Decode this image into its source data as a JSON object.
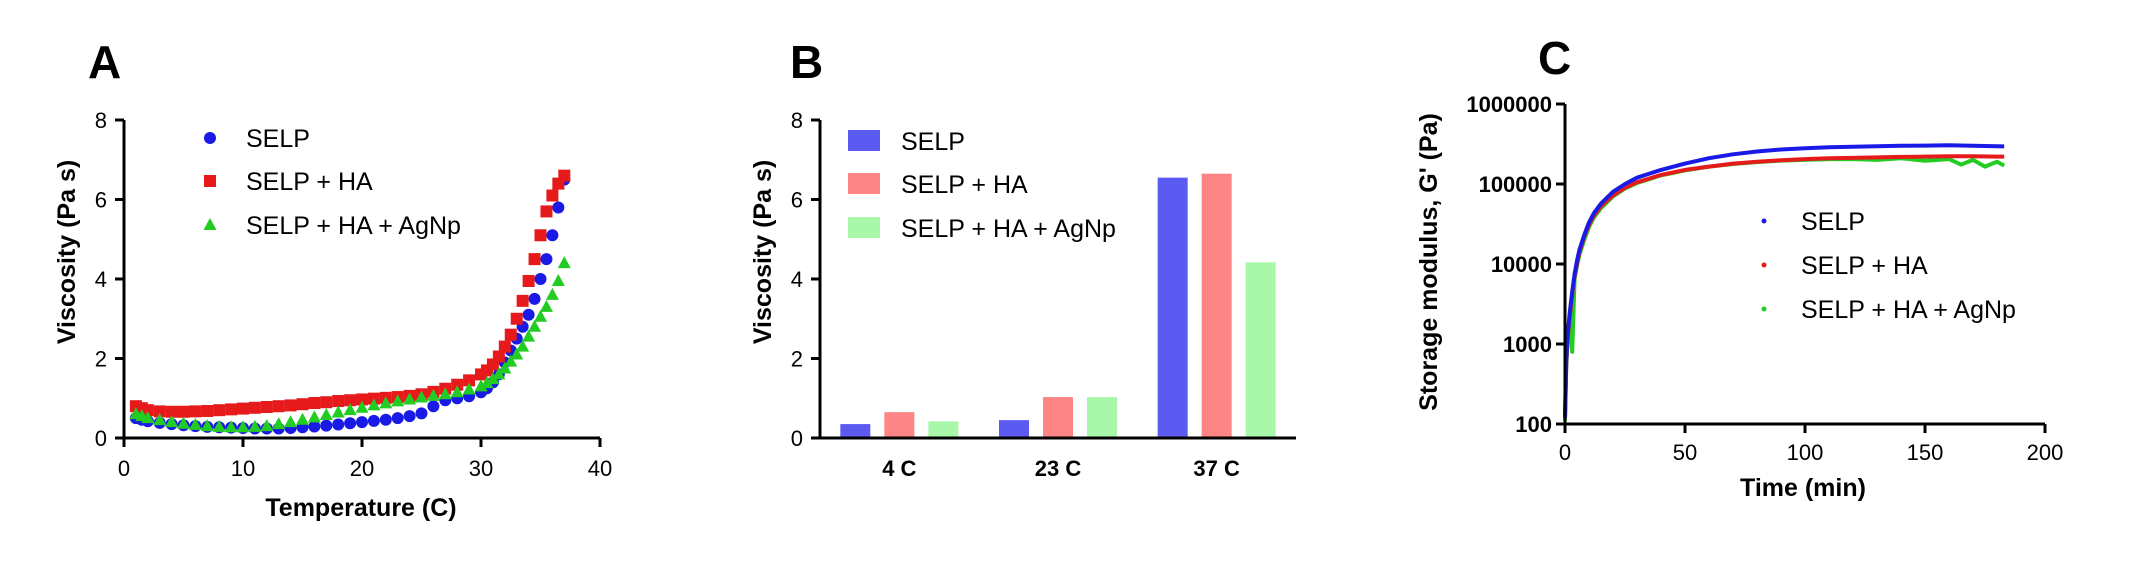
{
  "colors": {
    "selp": "#1a1ae6",
    "selp_ha": "#e61a1a",
    "selp_ha_agnp": "#22cc22",
    "bar_selp": "#5b5bf2",
    "bar_selp_ha": "#fd8585",
    "bar_selp_ha_agnp": "#a9f7a9"
  },
  "chart_data": [
    {
      "panel": "A",
      "type": "scatter",
      "xlabel": "Temperature (C)",
      "ylabel": "Viscosity (Pa s)",
      "xlim": [
        0,
        40
      ],
      "ylim": [
        0,
        8
      ],
      "xticks": [
        0,
        10,
        20,
        30,
        40
      ],
      "yticks": [
        0,
        2,
        4,
        6,
        8
      ],
      "legend": "top-left",
      "series": [
        {
          "name": "SELP",
          "marker": "circle",
          "x": [
            1,
            1.5,
            2,
            3,
            4,
            5,
            6,
            7,
            8,
            9,
            10,
            11,
            12,
            13,
            14,
            15,
            16,
            17,
            18,
            19,
            20,
            21,
            22,
            23,
            24,
            25,
            26,
            27,
            28,
            29,
            30,
            30.5,
            31,
            31.5,
            32,
            32.5,
            33,
            33.5,
            34,
            34.5,
            35,
            35.5,
            36,
            36.5,
            37
          ],
          "y": [
            0.5,
            0.46,
            0.42,
            0.38,
            0.35,
            0.32,
            0.3,
            0.28,
            0.27,
            0.26,
            0.25,
            0.24,
            0.24,
            0.24,
            0.25,
            0.27,
            0.29,
            0.31,
            0.34,
            0.37,
            0.4,
            0.43,
            0.46,
            0.5,
            0.55,
            0.62,
            0.8,
            0.95,
            1.0,
            1.05,
            1.15,
            1.25,
            1.4,
            1.6,
            1.9,
            2.2,
            2.5,
            2.8,
            3.1,
            3.5,
            4.0,
            4.5,
            5.1,
            5.8,
            6.5
          ]
        },
        {
          "name": "SELP + HA",
          "marker": "square",
          "x": [
            1,
            1.5,
            2,
            3,
            4,
            5,
            6,
            7,
            8,
            9,
            10,
            11,
            12,
            13,
            14,
            15,
            16,
            17,
            18,
            19,
            20,
            21,
            22,
            23,
            24,
            25,
            26,
            27,
            28,
            29,
            30,
            30.5,
            31,
            31.5,
            32,
            32.5,
            33,
            33.5,
            34,
            34.5,
            35,
            35.5,
            36,
            36.5,
            37
          ],
          "y": [
            0.8,
            0.75,
            0.7,
            0.67,
            0.66,
            0.66,
            0.67,
            0.68,
            0.7,
            0.72,
            0.74,
            0.76,
            0.78,
            0.8,
            0.82,
            0.85,
            0.88,
            0.9,
            0.93,
            0.95,
            0.97,
            0.99,
            1.01,
            1.03,
            1.06,
            1.1,
            1.16,
            1.24,
            1.34,
            1.45,
            1.6,
            1.7,
            1.85,
            2.05,
            2.3,
            2.6,
            3.0,
            3.45,
            3.95,
            4.5,
            5.1,
            5.7,
            6.1,
            6.4,
            6.6
          ]
        },
        {
          "name": "SELP + HA + AgNp",
          "marker": "triangle",
          "x": [
            1,
            1.5,
            2,
            3,
            4,
            5,
            6,
            7,
            8,
            9,
            10,
            11,
            12,
            13,
            14,
            15,
            16,
            17,
            18,
            19,
            20,
            21,
            22,
            23,
            24,
            25,
            26,
            27,
            28,
            29,
            30,
            30.5,
            31,
            31.5,
            32,
            32.5,
            33,
            33.5,
            34,
            34.5,
            35,
            35.5,
            36,
            36.5,
            37
          ],
          "y": [
            0.6,
            0.55,
            0.5,
            0.45,
            0.4,
            0.36,
            0.33,
            0.3,
            0.28,
            0.27,
            0.27,
            0.28,
            0.3,
            0.35,
            0.4,
            0.46,
            0.52,
            0.58,
            0.64,
            0.7,
            0.76,
            0.82,
            0.87,
            0.92,
            0.97,
            1.02,
            1.06,
            1.1,
            1.15,
            1.22,
            1.3,
            1.38,
            1.48,
            1.6,
            1.75,
            1.92,
            2.1,
            2.3,
            2.55,
            2.8,
            3.05,
            3.3,
            3.6,
            3.95,
            4.4
          ]
        }
      ]
    },
    {
      "panel": "B",
      "type": "bar",
      "ylabel": "Viscosity (Pa s)",
      "ylim": [
        0,
        8
      ],
      "yticks": [
        0,
        2,
        4,
        6,
        8
      ],
      "categories": [
        "4 C",
        "23 C",
        "37 C"
      ],
      "legend": "top-left",
      "series": [
        {
          "name": "SELP",
          "values": [
            0.35,
            0.45,
            6.55
          ]
        },
        {
          "name": "SELP + HA",
          "values": [
            0.65,
            1.03,
            6.65
          ]
        },
        {
          "name": "SELP + HA + AgNp",
          "values": [
            0.42,
            1.03,
            4.42
          ]
        }
      ]
    },
    {
      "panel": "C",
      "type": "scatter",
      "xlabel": "Time (min)",
      "ylabel": "Storage modulus, G' (Pa)",
      "xlim": [
        0,
        200
      ],
      "ylim": [
        100,
        1000000
      ],
      "yscale": "log",
      "xticks": [
        0,
        50,
        100,
        150,
        200
      ],
      "yticks": [
        100,
        1000,
        10000,
        100000,
        1000000
      ],
      "legend": "center-right",
      "series": [
        {
          "name": "SELP",
          "x": [
            0,
            0.5,
            1,
            2,
            3,
            4,
            5,
            6,
            8,
            10,
            12,
            15,
            20,
            25,
            30,
            40,
            50,
            60,
            70,
            80,
            90,
            100,
            110,
            120,
            130,
            140,
            150,
            160,
            170,
            180,
            183
          ],
          "y": [
            120,
            600,
            1200,
            2500,
            4500,
            7500,
            11000,
            15000,
            23000,
            33000,
            43000,
            57000,
            80000,
            100000,
            120000,
            150000,
            180000,
            210000,
            235000,
            255000,
            270000,
            280000,
            288000,
            292000,
            296000,
            300000,
            302000,
            305000,
            300000,
            296000,
            295000
          ]
        },
        {
          "name": "SELP + HA",
          "x": [
            0,
            0.5,
            1,
            2,
            3,
            4,
            5,
            6,
            8,
            10,
            12,
            15,
            20,
            25,
            30,
            40,
            50,
            60,
            70,
            80,
            90,
            100,
            110,
            120,
            130,
            140,
            150,
            160,
            170,
            180,
            183
          ],
          "y": [
            120,
            550,
            1100,
            2300,
            4200,
            7000,
            10000,
            14000,
            22000,
            31000,
            40000,
            53000,
            72000,
            90000,
            105000,
            130000,
            150000,
            165000,
            180000,
            190000,
            198000,
            205000,
            210000,
            212000,
            215000,
            218000,
            220000,
            222000,
            222000,
            220000,
            220000
          ]
        },
        {
          "name": "SELP + HA + AgNp",
          "x": [
            0,
            0.5,
            1,
            2,
            3,
            4,
            5,
            6,
            8,
            10,
            12,
            15,
            20,
            25,
            30,
            40,
            50,
            60,
            70,
            80,
            90,
            100,
            110,
            120,
            130,
            140,
            150,
            160,
            165,
            170,
            175,
            180,
            183
          ],
          "y": [
            110,
            500,
            1000,
            2100,
            800,
            6500,
            9500,
            13000,
            20000,
            29000,
            38000,
            50000,
            70000,
            88000,
            103000,
            128000,
            148000,
            165000,
            178000,
            188000,
            196000,
            200000,
            205000,
            205000,
            200000,
            210000,
            195000,
            205000,
            175000,
            200000,
            165000,
            190000,
            170000
          ]
        }
      ]
    }
  ]
}
